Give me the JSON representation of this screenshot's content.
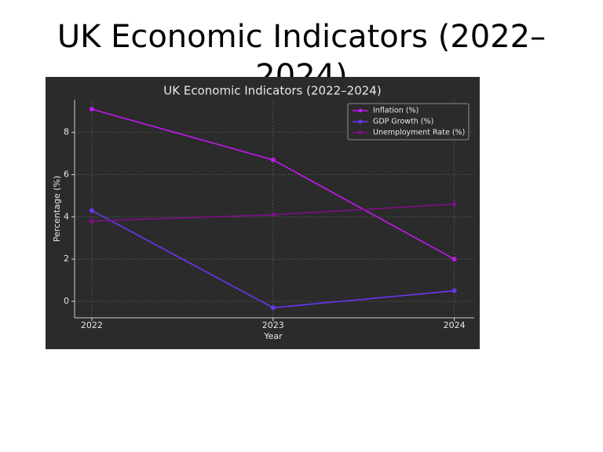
{
  "slide": {
    "title": "UK Economic Indicators (2022–2024)"
  },
  "chart_data": {
    "type": "line",
    "title": "UK Economic Indicators (2022–2024)",
    "x_label": "Year",
    "y_label": "Percentage (%)",
    "x": [
      2022,
      2023,
      2024
    ],
    "xlim": [
      2021.905,
      2024.11
    ],
    "xticks": [
      2022,
      2023,
      2024
    ],
    "ylim": [
      -0.78,
      9.55
    ],
    "yticks": [
      0,
      2,
      4,
      6,
      8
    ],
    "grid": true,
    "legend": "upper right",
    "series": [
      {
        "name": "Inflation (%)",
        "color": "#c218f0",
        "values": [
          9.1,
          6.7,
          2.0
        ]
      },
      {
        "name": "GDP Growth (%)",
        "color": "#6a35f0",
        "values": [
          4.3,
          -0.3,
          0.5
        ]
      },
      {
        "name": "Unemployment Rate (%)",
        "color": "#7f0f86",
        "values": [
          3.8,
          4.1,
          4.6
        ]
      }
    ]
  }
}
